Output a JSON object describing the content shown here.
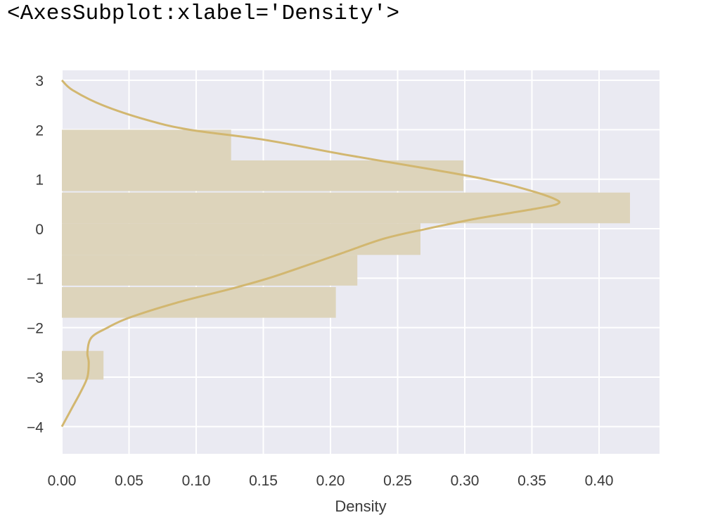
{
  "output": {
    "repr": "<AxesSubplot:xlabel='Density'>"
  },
  "colors": {
    "background": "#eaeaf2",
    "grid": "#ffffff",
    "bar": "#ddd4bb",
    "kde": "#d2b770",
    "text": "#3a3a3a"
  },
  "chart_data": {
    "type": "bar",
    "orientation": "horizontal",
    "xlabel": "Density",
    "ylabel": "",
    "xlim": [
      0,
      0.445
    ],
    "ylim": [
      -4.55,
      3.2
    ],
    "xticks": [
      "0.00",
      "0.05",
      "0.10",
      "0.15",
      "0.20",
      "0.25",
      "0.30",
      "0.35",
      "0.40"
    ],
    "yticks": [
      "3",
      "2",
      "1",
      "0",
      "−1",
      "−2",
      "−3",
      "−4"
    ],
    "grid": true,
    "bins": [
      {
        "y0": -3.05,
        "y1": -2.47,
        "density": 0.031
      },
      {
        "y0": -1.8,
        "y1": -1.18,
        "density": 0.204
      },
      {
        "y0": -1.15,
        "y1": -0.53,
        "density": 0.22
      },
      {
        "y0": -0.53,
        "y1": 0.11,
        "density": 0.267
      },
      {
        "y0": 0.11,
        "y1": 0.73,
        "density": 0.423
      },
      {
        "y0": 0.76,
        "y1": 1.38,
        "density": 0.299
      },
      {
        "y0": 1.38,
        "y1": 2.0,
        "density": 0.126
      }
    ],
    "kde": {
      "y": [
        3.0,
        2.8,
        2.5,
        2.2,
        2.0,
        1.8,
        1.5,
        1.2,
        1.0,
        0.8,
        0.6,
        0.5,
        0.4,
        0.2,
        0.0,
        -0.2,
        -0.5,
        -0.8,
        -1.0,
        -1.2,
        -1.5,
        -1.8,
        -2.0,
        -2.2,
        -2.5,
        -2.7,
        -3.0,
        -3.3,
        -3.6,
        -4.0
      ],
      "density": [
        0.0,
        0.008,
        0.03,
        0.063,
        0.095,
        0.15,
        0.21,
        0.275,
        0.315,
        0.345,
        0.367,
        0.369,
        0.352,
        0.308,
        0.272,
        0.24,
        0.208,
        0.176,
        0.154,
        0.128,
        0.085,
        0.05,
        0.034,
        0.022,
        0.019,
        0.02,
        0.019,
        0.014,
        0.008,
        0.0
      ]
    }
  }
}
